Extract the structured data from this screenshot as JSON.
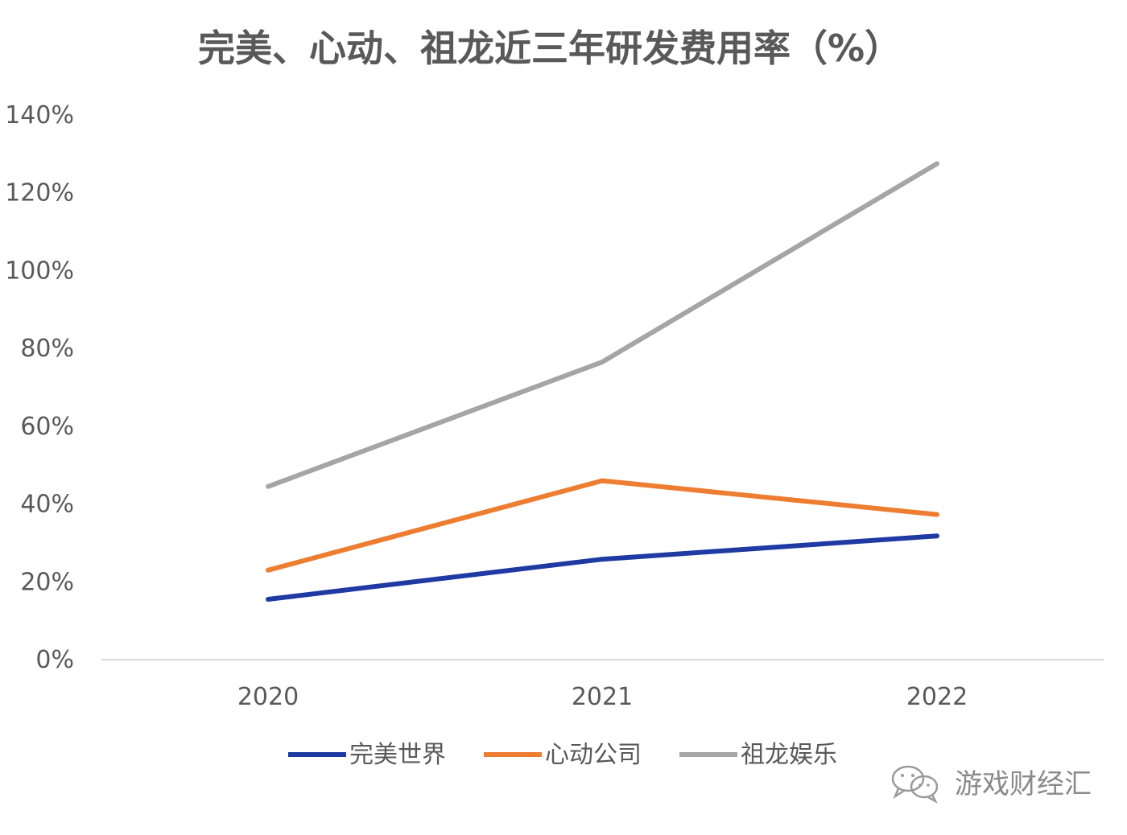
{
  "chart_data": {
    "type": "line",
    "title": "完美、心动、祖龙近三年研发费用率（%）",
    "xlabel": "",
    "ylabel": "",
    "categories": [
      "2020",
      "2021",
      "2022"
    ],
    "y_tick_labels": [
      "0%",
      "20%",
      "40%",
      "60%",
      "80%",
      "100%",
      "120%",
      "140%"
    ],
    "y_ticks": [
      0,
      20,
      40,
      60,
      80,
      100,
      120,
      140
    ],
    "ylim": [
      0,
      140
    ],
    "y_unit": "%",
    "grid": false,
    "legend_position": "bottom",
    "series": [
      {
        "name": "完美世界",
        "color": "#1f3aa3",
        "values": [
          15.5,
          25.8,
          31.8
        ]
      },
      {
        "name": "心动公司",
        "color": "#ed7d31",
        "values": [
          23.0,
          46.0,
          37.3
        ]
      },
      {
        "name": "祖龙娱乐",
        "color": "#a5a5a5",
        "values": [
          44.5,
          76.5,
          127.5
        ]
      }
    ]
  },
  "watermark": {
    "text": "游戏财经汇",
    "icon": "wechat-icon"
  }
}
